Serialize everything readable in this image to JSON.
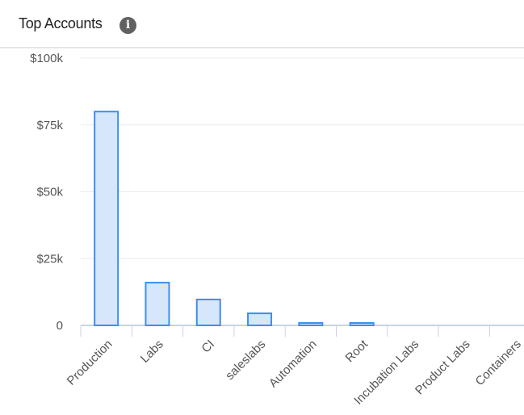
{
  "header": {
    "title": "Top Accounts",
    "info_icon": "info-icon"
  },
  "chart_data": {
    "type": "bar",
    "title": "",
    "xlabel": "",
    "ylabel": "",
    "categories": [
      "Production",
      "Labs",
      "CI",
      "saleslabs",
      "Automation",
      "Root",
      "Incubation Labs",
      "Product Labs",
      "Containers"
    ],
    "values": [
      80000,
      16000,
      9700,
      4500,
      900,
      900,
      0,
      0,
      0
    ],
    "ylim": [
      0,
      100000
    ],
    "yticks": [
      {
        "value": 0,
        "label": "0"
      },
      {
        "value": 25000,
        "label": "$25k"
      },
      {
        "value": 50000,
        "label": "$50k"
      },
      {
        "value": 75000,
        "label": "$75k"
      },
      {
        "value": 100000,
        "label": "$100k"
      }
    ],
    "grid": true,
    "colors": {
      "bar_fill": "#d6e6fb",
      "bar_stroke": "#3d8ef0",
      "grid": "#ececec",
      "axis": "#c9d3e6",
      "tick_text": "#555555"
    }
  }
}
